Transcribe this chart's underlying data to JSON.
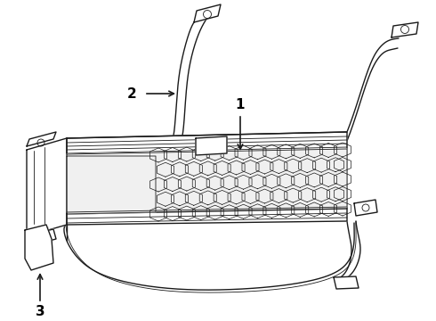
{
  "background_color": "#ffffff",
  "line_color": "#1a1a1a",
  "figsize": [
    4.9,
    3.6
  ],
  "dpi": 100,
  "label_fontsize": 11
}
